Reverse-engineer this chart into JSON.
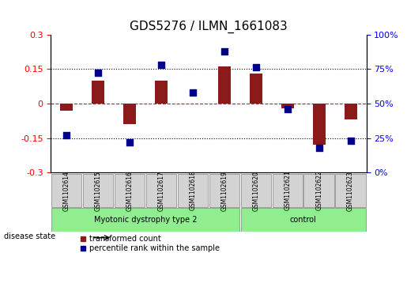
{
  "title": "GDS5276 / ILMN_1661083",
  "samples": [
    "GSM1102614",
    "GSM1102615",
    "GSM1102616",
    "GSM1102617",
    "GSM1102618",
    "GSM1102619",
    "GSM1102620",
    "GSM1102621",
    "GSM1102622",
    "GSM1102623"
  ],
  "transformed_count": [
    -0.03,
    0.1,
    -0.09,
    0.1,
    0.0,
    0.16,
    0.13,
    -0.02,
    -0.18,
    -0.07
  ],
  "percentile_rank": [
    27,
    72,
    22,
    78,
    58,
    88,
    76,
    46,
    18,
    23
  ],
  "groups": [
    {
      "label": "Myotonic dystrophy type 2",
      "indices": [
        0,
        1,
        2,
        3,
        4,
        5
      ],
      "color": "#90EE90"
    },
    {
      "label": "control",
      "indices": [
        6,
        7,
        8,
        9
      ],
      "color": "#90EE90"
    }
  ],
  "ylim_left": [
    -0.3,
    0.3
  ],
  "ylim_right": [
    0,
    100
  ],
  "yticks_left": [
    -0.3,
    -0.15,
    0.0,
    0.15,
    0.3
  ],
  "yticks_right": [
    0,
    25,
    50,
    75,
    100
  ],
  "ytick_labels_left": [
    "-0.3",
    "-0.15",
    "0",
    "0.15",
    "0.3"
  ],
  "ytick_labels_right": [
    "0%",
    "25%",
    "50%",
    "75%",
    "100%"
  ],
  "hlines": [
    0.15,
    0.0,
    -0.15
  ],
  "hline_styles": [
    "dotted",
    "dashed_red",
    "dotted"
  ],
  "bar_color": "#8B1A1A",
  "scatter_color": "#00008B",
  "bar_width": 0.4,
  "disease_state_label": "disease state",
  "legend_items": [
    {
      "label": "transformed count",
      "color": "#8B1A1A",
      "marker": "s"
    },
    {
      "label": "percentile rank within the sample",
      "color": "#00008B",
      "marker": "s"
    }
  ]
}
